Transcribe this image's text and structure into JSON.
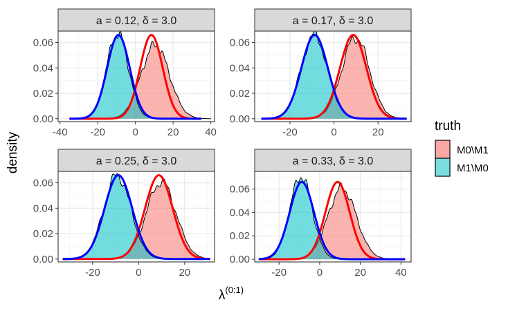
{
  "chart_data": {
    "type": "area",
    "ylabel": "density",
    "xlabel": "λ(0:1)",
    "xlabel_main": "λ",
    "xlabel_sup": "(0:1)",
    "legend": {
      "title": "truth",
      "placement": "right",
      "entries": [
        {
          "label": "M0\\M1",
          "fill": "#F8A9A4",
          "curve": "#FF0000"
        },
        {
          "label": "M1\\M0",
          "fill": "#7ADDDF",
          "curve": "#0000FF"
        }
      ]
    },
    "colors": {
      "red_fill": "#F8766D",
      "teal_fill": "#00BFC4",
      "red_curve": "#FF0000",
      "blue_curve": "#0000FF",
      "strip_bg": "#D9D9D9",
      "grid_major": "#EBEBEB",
      "grid_minor": "#F5F5F5"
    },
    "panels": [
      {
        "title": "a = 0.12, δ = 3.0",
        "xlim": [
          -41,
          42
        ],
        "ylim": [
          -0.0023,
          0.069
        ],
        "xticks": [
          -40,
          -20,
          0,
          20,
          40
        ],
        "yticks": [
          0.0,
          0.02,
          0.04,
          0.06
        ],
        "xtick_labels": [
          "-40",
          "-20",
          "0",
          "20",
          "40"
        ],
        "ytick_labels": [
          "0.00",
          "0.02",
          "0.04",
          "0.06"
        ],
        "show_yticks": true,
        "show_xticks": true,
        "series": [
          {
            "name": "M0\\M1",
            "mean": 10.5,
            "sd": 7.5,
            "peak": 0.058,
            "support": [
              -28,
              40
            ]
          },
          {
            "name": "M1\\M0",
            "mean": -9.5,
            "sd": 5.8,
            "peak": 0.067,
            "support": [
              -32,
              15
            ]
          }
        ],
        "fits": [
          {
            "name": "M0\\M1",
            "mean": 8.5,
            "sd": 6.0,
            "peak": 0.066,
            "support": [
              -35,
              35
            ]
          },
          {
            "name": "M1\\M0",
            "mean": -9.0,
            "sd": 6.0,
            "peak": 0.066,
            "support": [
              -35,
              35
            ]
          }
        ]
      },
      {
        "title": "a = 0.17, δ = 3.0",
        "xlim": [
          -36,
          35
        ],
        "ylim": [
          -0.0023,
          0.069
        ],
        "xticks": [
          -20,
          0,
          20
        ],
        "yticks": [
          0.0,
          0.02,
          0.04,
          0.06
        ],
        "xtick_labels": [
          "-20",
          "0",
          "20"
        ],
        "ytick_labels": [
          "0.00",
          "0.02",
          "0.04",
          "0.06"
        ],
        "show_yticks": true,
        "show_xticks": true,
        "series": [
          {
            "name": "M0\\M1",
            "mean": 9.8,
            "sd": 6.3,
            "peak": 0.064,
            "support": [
              -12,
              33
            ]
          },
          {
            "name": "M1\\M0",
            "mean": -9.0,
            "sd": 6.0,
            "peak": 0.066,
            "support": [
              -32,
              12
            ]
          }
        ],
        "fits": [
          {
            "name": "M0\\M1",
            "mean": 8.7,
            "sd": 6.0,
            "peak": 0.066,
            "support": [
              -33,
              33
            ]
          },
          {
            "name": "M1\\M0",
            "mean": -8.8,
            "sd": 6.0,
            "peak": 0.066,
            "support": [
              -33,
              33
            ]
          }
        ]
      },
      {
        "title": "a = 0.25, δ = 3.0",
        "xlim": [
          -35,
          33
        ],
        "ylim": [
          -0.0023,
          0.069
        ],
        "xticks": [
          -20,
          0,
          20
        ],
        "yticks": [
          0.0,
          0.02,
          0.04,
          0.06
        ],
        "xtick_labels": [
          "-20",
          "0",
          "20"
        ],
        "ytick_labels": [
          "0.00",
          "0.02",
          "0.04",
          "0.06"
        ],
        "show_yticks": true,
        "show_xticks": true,
        "series": [
          {
            "name": "M0\\M1",
            "mean": 9.8,
            "sd": 6.4,
            "peak": 0.061,
            "support": [
              -12,
              31
            ]
          },
          {
            "name": "M1\\M0",
            "mean": -9.3,
            "sd": 5.9,
            "peak": 0.066,
            "support": [
              -33,
              12
            ]
          }
        ],
        "fits": [
          {
            "name": "M0\\M1",
            "mean": 8.8,
            "sd": 6.0,
            "peak": 0.066,
            "support": [
              -33,
              31
            ]
          },
          {
            "name": "M1\\M0",
            "mean": -8.8,
            "sd": 6.0,
            "peak": 0.066,
            "support": [
              -33,
              31
            ]
          }
        ]
      },
      {
        "title": "a = 0.33, δ = 3.0",
        "xlim": [
          -32,
          45
        ],
        "ylim": [
          -0.0023,
          0.075
        ],
        "xticks": [
          -20,
          0,
          20,
          40
        ],
        "yticks": [
          0.0,
          0.02,
          0.04,
          0.06
        ],
        "xtick_labels": [
          "-20",
          "0",
          "20",
          "40"
        ],
        "ytick_labels": [
          "0.00",
          "0.02",
          "0.04",
          "0.06"
        ],
        "show_yticks": true,
        "show_xticks": true,
        "series": [
          {
            "name": "M0\\M1",
            "mean": 11.0,
            "sd": 7.0,
            "peak": 0.061,
            "support": [
              -10,
              42
            ]
          },
          {
            "name": "M1\\M0",
            "mean": -9.2,
            "sd": 5.5,
            "peak": 0.071,
            "support": [
              -30,
              10
            ]
          }
        ],
        "fits": [
          {
            "name": "M0\\M1",
            "mean": 8.8,
            "sd": 6.0,
            "peak": 0.066,
            "support": [
              -30,
              42
            ]
          },
          {
            "name": "M1\\M0",
            "mean": -8.8,
            "sd": 6.0,
            "peak": 0.066,
            "support": [
              -30,
              42
            ]
          }
        ]
      }
    ]
  }
}
